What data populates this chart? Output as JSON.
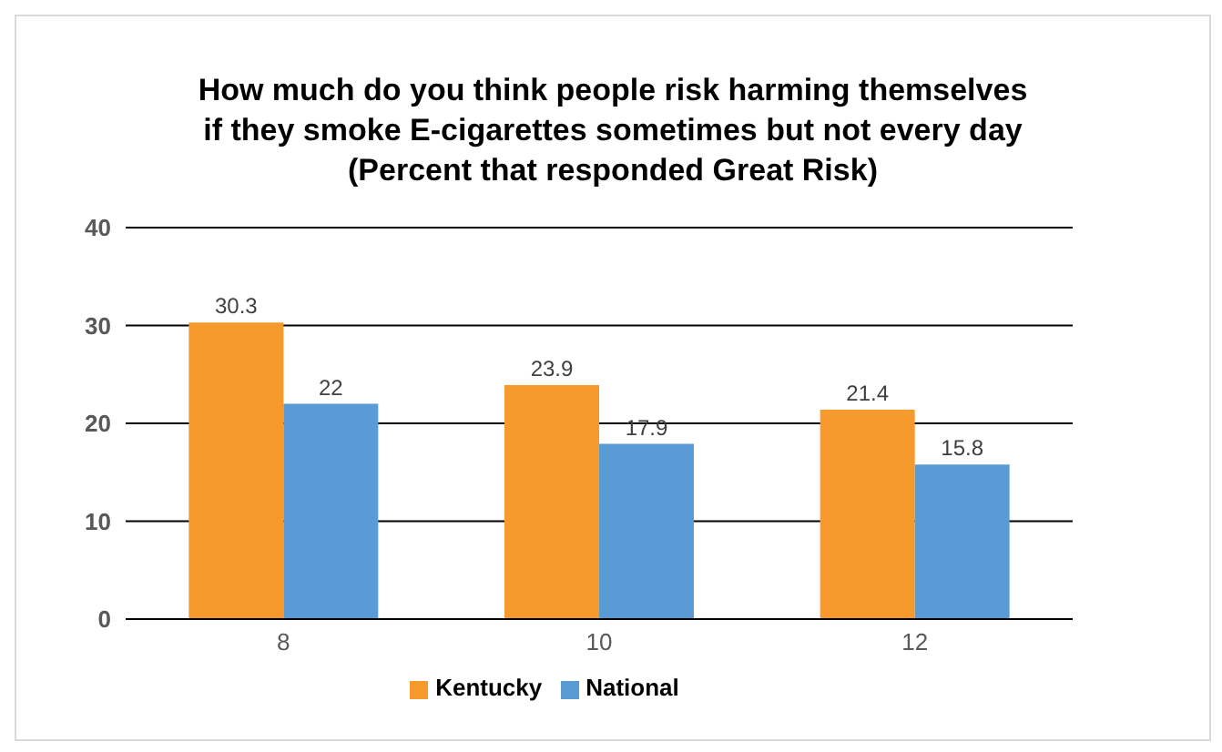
{
  "chart_data": {
    "type": "bar",
    "title": "How much do you think people risk harming themselves\nif they smoke E-cigarettes sometimes but not every day\n(Percent that responded Great Risk)",
    "categories": [
      "8",
      "10",
      "12"
    ],
    "series": [
      {
        "name": "Kentucky",
        "color": "#f79a2e",
        "values": [
          30.3,
          23.9,
          21.4
        ]
      },
      {
        "name": "National",
        "color": "#5b9bd5",
        "values": [
          22,
          17.9,
          15.8
        ]
      }
    ],
    "ylim": [
      0,
      40
    ],
    "yticks": [
      0,
      10,
      20,
      30,
      40
    ],
    "grid": "y",
    "legend": "bottom",
    "data_labels": true
  }
}
